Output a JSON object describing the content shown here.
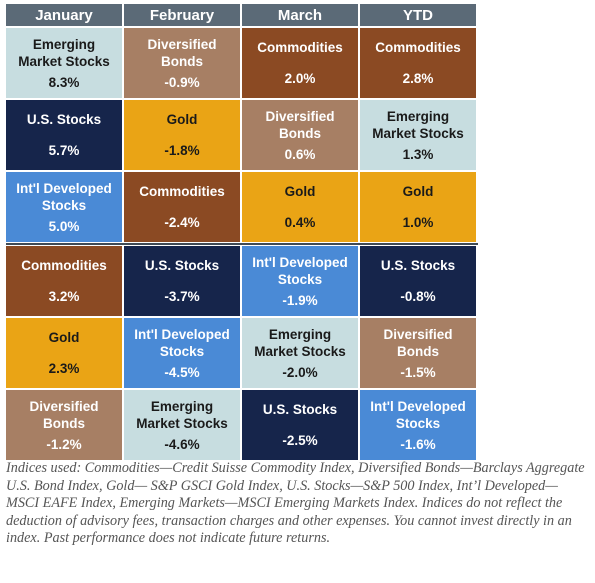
{
  "chart_data": {
    "type": "table",
    "columns": [
      "January",
      "February",
      "March",
      "YTD"
    ],
    "rows": [
      [
        {
          "name": "Emerging\nMarket Stocks",
          "value": "8.3%",
          "asset": "emerging"
        },
        {
          "name": "Diversified\nBonds",
          "value": "-0.9%",
          "asset": "bonds"
        },
        {
          "name": "Commodities",
          "value": "2.0%",
          "asset": "commodities"
        },
        {
          "name": "Commodities",
          "value": "2.8%",
          "asset": "commodities"
        }
      ],
      [
        {
          "name": "U.S. Stocks",
          "value": "5.7%",
          "asset": "us"
        },
        {
          "name": "Gold",
          "value": "-1.8%",
          "asset": "gold"
        },
        {
          "name": "Diversified\nBonds",
          "value": "0.6%",
          "asset": "bonds"
        },
        {
          "name": "Emerging\nMarket Stocks",
          "value": "1.3%",
          "asset": "emerging"
        }
      ],
      [
        {
          "name": "Int'l Developed\nStocks",
          "value": "5.0%",
          "asset": "intl"
        },
        {
          "name": "Commodities",
          "value": "-2.4%",
          "asset": "commodities"
        },
        {
          "name": "Gold",
          "value": "0.4%",
          "asset": "gold"
        },
        {
          "name": "Gold",
          "value": "1.0%",
          "asset": "gold"
        }
      ],
      [
        {
          "name": "Commodities",
          "value": "3.2%",
          "asset": "commodities"
        },
        {
          "name": "U.S. Stocks",
          "value": "-3.7%",
          "asset": "us"
        },
        {
          "name": "Int'l Developed\nStocks",
          "value": "-1.9%",
          "asset": "intl"
        },
        {
          "name": "U.S. Stocks",
          "value": "-0.8%",
          "asset": "us"
        }
      ],
      [
        {
          "name": "Gold",
          "value": "2.3%",
          "asset": "gold"
        },
        {
          "name": "Int'l Developed\nStocks",
          "value": "-4.5%",
          "asset": "intl"
        },
        {
          "name": "Emerging\nMarket Stocks",
          "value": "-2.0%",
          "asset": "emerging"
        },
        {
          "name": "Diversified\nBonds",
          "value": "-1.5%",
          "asset": "bonds"
        }
      ],
      [
        {
          "name": "Diversified\nBonds",
          "value": "-1.2%",
          "asset": "bonds"
        },
        {
          "name": "Emerging\nMarket Stocks",
          "value": "-4.6%",
          "asset": "emerging"
        },
        {
          "name": "U.S. Stocks",
          "value": "-2.5%",
          "asset": "us"
        },
        {
          "name": "Int'l Developed\nStocks",
          "value": "-1.6%",
          "asset": "intl"
        }
      ]
    ],
    "asset_colors": {
      "emerging": {
        "bg": "#c7dde0",
        "fg": "#1a1a1a"
      },
      "bonds": {
        "bg": "#a77f64",
        "fg": "#ffffff"
      },
      "commodities": {
        "bg": "#8b4a23",
        "fg": "#ffffff"
      },
      "us": {
        "bg": "#16254b",
        "fg": "#ffffff"
      },
      "gold": {
        "bg": "#eaa415",
        "fg": "#1a1a1a"
      },
      "intl": {
        "bg": "#4a8ad6",
        "fg": "#ffffff"
      }
    },
    "header_color": "#5b6a77"
  },
  "footnote": "Indices used:  Commodities—Credit Suisse Commodity Index, Diversified Bonds—Barclays Aggregate U.S. Bond Index, Gold— S&P GSCI Gold Index, U.S. Stocks—S&P 500 Index, Int’l Developed—MSCI EAFE Index, Emerging Markets—MSCI Emerging Markets Index. Indices do not reflect the deduction of advisory fees, transaction charges and other expenses. You cannot invest directly in an index. Past performance does not indicate future returns."
}
